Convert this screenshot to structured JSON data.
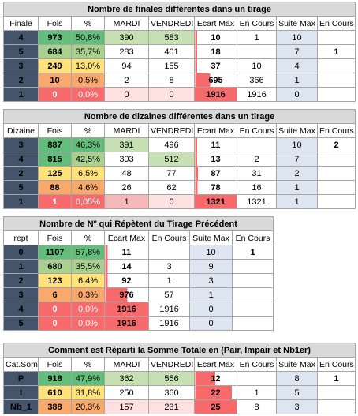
{
  "t1": {
    "title": "Nombre de finales différentes dans un tirage",
    "headers": [
      "Finale",
      "Fois",
      "%",
      "MARDI",
      "VENDREDI",
      "Ecart Max",
      "En Cours",
      "Suite Max",
      "En Cours"
    ],
    "rows": [
      [
        "4",
        "973",
        "50,8%",
        "390",
        "583",
        "10",
        "1",
        "10",
        ""
      ],
      [
        "5",
        "684",
        "35,7%",
        "283",
        "401",
        "18",
        "",
        "7",
        "1"
      ],
      [
        "3",
        "249",
        "13,0%",
        "94",
        "155",
        "37",
        "10",
        "4",
        ""
      ],
      [
        "2",
        "10",
        "0,5%",
        "2",
        "8",
        "695",
        "366",
        "1",
        ""
      ],
      [
        "1",
        "0",
        "0,0%",
        "0",
        "0",
        "1916",
        "1916",
        "0",
        ""
      ]
    ],
    "ecart_fraction": [
      0.005,
      0.01,
      0.02,
      0.36,
      1.0
    ]
  },
  "t2": {
    "title": "Nombre de dizaines différentes dans un tirage",
    "headers": [
      "Dizaine",
      "Fois",
      "%",
      "MARDI",
      "VENDREDI",
      "Ecart Max",
      "En Cours",
      "Suite Max",
      "En Cours"
    ],
    "rows": [
      [
        "3",
        "887",
        "46,3%",
        "391",
        "496",
        "11",
        "",
        "10",
        "2"
      ],
      [
        "4",
        "815",
        "42,5%",
        "303",
        "512",
        "13",
        "2",
        "7",
        ""
      ],
      [
        "2",
        "125",
        "6,5%",
        "48",
        "77",
        "87",
        "31",
        "2",
        ""
      ],
      [
        "5",
        "88",
        "4,6%",
        "26",
        "62",
        "78",
        "16",
        "1",
        ""
      ],
      [
        "1",
        "1",
        "0,05%",
        "1",
        "0",
        "1321",
        "1321",
        "1",
        ""
      ]
    ],
    "ecart_fraction": [
      0.008,
      0.01,
      0.066,
      0.059,
      1.0
    ]
  },
  "t3": {
    "title": "Nombre de Nº qui Répètent du Tirage Précédent",
    "headers": [
      "rept",
      "Fois",
      "%",
      "Ecart Max",
      "En Cours",
      "Suite Max",
      "En Cours"
    ],
    "rows": [
      [
        "0",
        "1107",
        "57,8%",
        "11",
        "",
        "10",
        "1"
      ],
      [
        "1",
        "680",
        "35,5%",
        "14",
        "3",
        "9",
        ""
      ],
      [
        "2",
        "123",
        "6,4%",
        "92",
        "1",
        "3",
        ""
      ],
      [
        "3",
        "6",
        "0,3%",
        "976",
        "57",
        "1",
        ""
      ],
      [
        "4",
        "0",
        "0,0%",
        "1916",
        "1916",
        "0",
        ""
      ],
      [
        "5",
        "0",
        "0,0%",
        "1916",
        "1916",
        "0",
        ""
      ]
    ],
    "ecart_fraction": [
      0.006,
      0.007,
      0.048,
      0.51,
      1.0,
      1.0
    ]
  },
  "t4": {
    "title": "Comment est Réparti la Somme Totale en (Pair, Impair et Nb1er)",
    "headers": [
      "Cat.Som",
      "Fois",
      "%",
      "MARDI",
      "VENDREDI",
      "Ecart Max",
      "En Cours",
      "Suite Max",
      "En Cours"
    ],
    "rows": [
      [
        "P",
        "918",
        "47,9%",
        "362",
        "556",
        "12",
        "",
        "8",
        "1"
      ],
      [
        "I",
        "610",
        "31,8%",
        "250",
        "360",
        "22",
        "1",
        "5",
        ""
      ],
      [
        "Nb_1",
        "388",
        "20,3%",
        "157",
        "231",
        "25",
        "8",
        "3",
        ""
      ]
    ],
    "ecart_fraction": [
      0.48,
      0.88,
      1.0
    ]
  },
  "colors": {
    "title_text": "#7030a0",
    "label_bg": "#44546a",
    "bar": "#f8696b",
    "suite_bg": "#dde6f0"
  }
}
